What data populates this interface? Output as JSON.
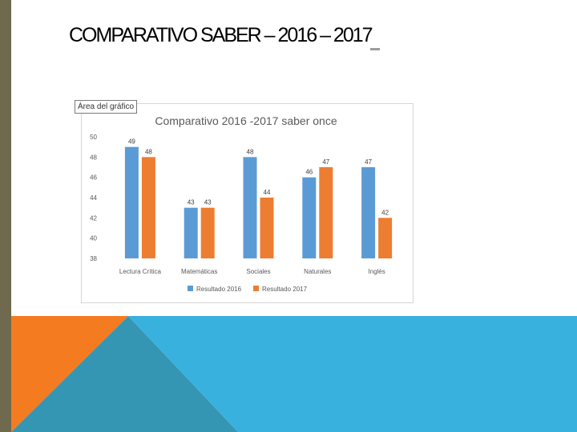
{
  "slide": {
    "title": "COMPARATIVO SABER – 2016 – 2017",
    "colors": {
      "left_bar": "#6f6a4e",
      "orange": "#f47b20",
      "teal": "#3596b4",
      "sky": "#39b1de"
    }
  },
  "chart_tooltip": "Área del gráfico",
  "chart_data": {
    "type": "bar",
    "title": "Comparativo 2016 -2017 saber once",
    "categories": [
      "Lectura Crítica",
      "Matemáticas",
      "Sociales",
      "Naturales",
      "Inglés"
    ],
    "series": [
      {
        "name": "Resultado 2016",
        "color": "#5b9bd5",
        "values": [
          49,
          43,
          48,
          46,
          47
        ]
      },
      {
        "name": "Resultado 2017",
        "color": "#ed7d31",
        "values": [
          48,
          43,
          44,
          47,
          42
        ]
      }
    ],
    "ylim": [
      38,
      50
    ],
    "yticks": [
      38,
      40,
      42,
      44,
      46,
      48,
      50
    ],
    "xlabel": "",
    "ylabel": "",
    "grid": false,
    "legend": "bottom",
    "data_labels": true
  }
}
